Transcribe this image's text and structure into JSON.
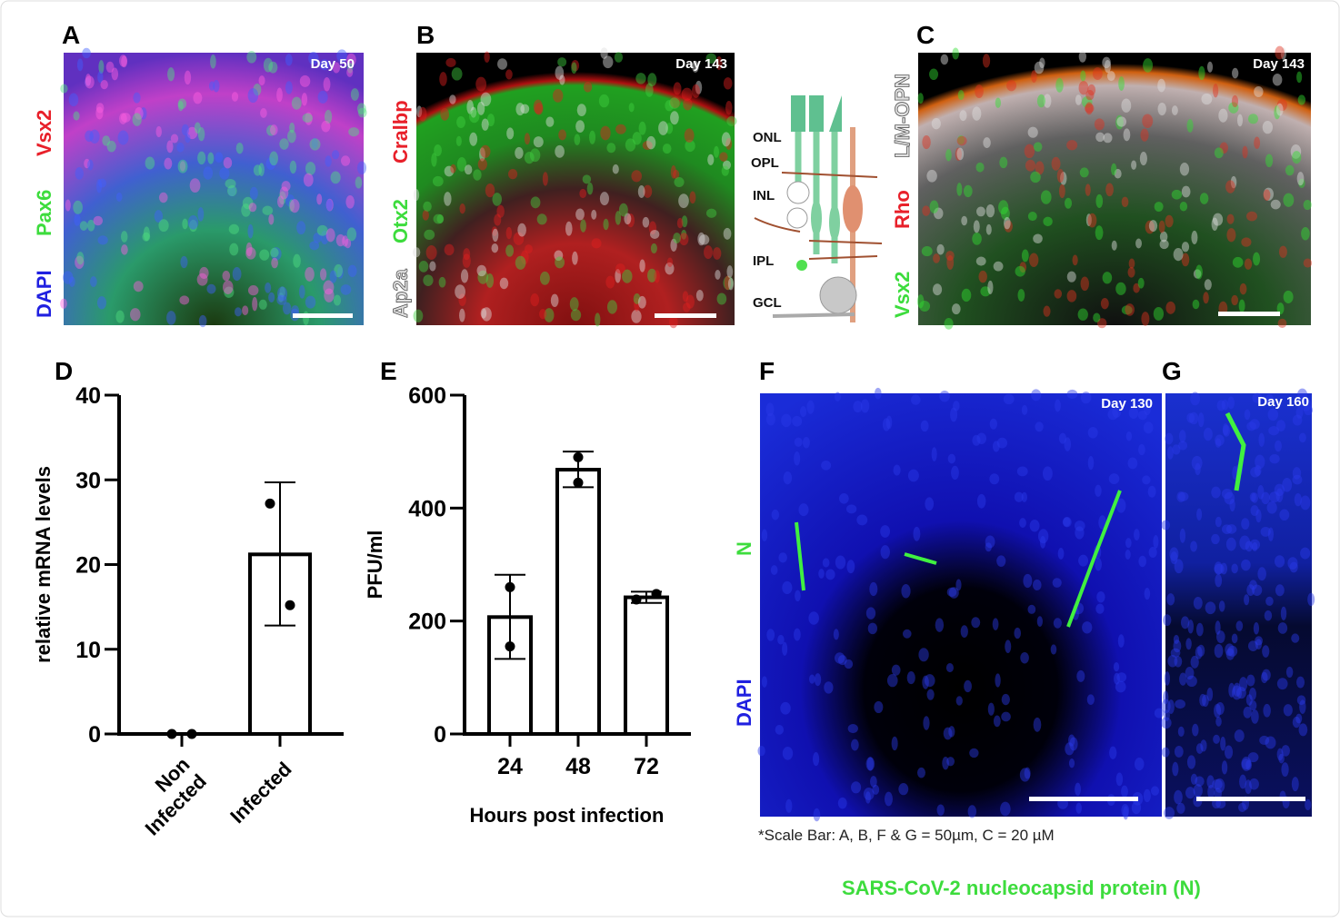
{
  "panels": {
    "A": {
      "letter": "A",
      "day": "Day 50",
      "channels": [
        {
          "label": "Vsx2",
          "color": "#e8202a"
        },
        {
          "label": "Pax6",
          "color": "#3ddc3d"
        },
        {
          "label": "DAPI",
          "color": "#2020e0"
        }
      ]
    },
    "B": {
      "letter": "B",
      "day": "Day 143",
      "channels": [
        {
          "label": "Cralbp",
          "color": "#e8202a"
        },
        {
          "label": "Otx2",
          "color": "#3ddc3d"
        },
        {
          "label": "Ap2a",
          "color": "#d0d0d0"
        }
      ],
      "layers": [
        "ONL",
        "OPL",
        "INL",
        "IPL",
        "GCL"
      ]
    },
    "C": {
      "letter": "C",
      "day": "Day 143",
      "channels": [
        {
          "label": "L/M-OPN",
          "color": "#d0d0d0"
        },
        {
          "label": "Rho",
          "color": "#e8202a"
        },
        {
          "label": "Vsx2",
          "color": "#3ddc3d"
        }
      ]
    },
    "D": {
      "letter": "D"
    },
    "E": {
      "letter": "E"
    },
    "F": {
      "letter": "F",
      "day": "Day 130",
      "channels": [
        {
          "label": "N",
          "color": "#3ddc3d"
        },
        {
          "label": "DAPI",
          "color": "#2020e0"
        }
      ]
    },
    "G": {
      "letter": "G",
      "day": "Day 160"
    }
  },
  "scale_note": "*Scale Bar: A, B, F & G =  50µm, C = 20 µM",
  "footer_label": "SARS-CoV-2 nucleocapsid protein (N)",
  "footer_color": "#3ddc3d",
  "chart_data": [
    {
      "panel": "D",
      "type": "bar",
      "categories": [
        "Non Infected",
        "Infected"
      ],
      "values": [
        0,
        21.2
      ],
      "points": [
        [
          0,
          0
        ],
        [
          27.2,
          15.2
        ]
      ],
      "error": [
        [
          0,
          0
        ],
        [
          12.8,
          29.7
        ]
      ],
      "xlabel": "",
      "ylabel": "relative mRNA levels",
      "ylim": [
        0,
        40
      ],
      "yticks": [
        0,
        10,
        20,
        30,
        40
      ],
      "grid": false
    },
    {
      "panel": "E",
      "type": "bar",
      "categories": [
        "24",
        "48",
        "72"
      ],
      "values": [
        207,
        468,
        242
      ],
      "points": [
        [
          260,
          155
        ],
        [
          490,
          445
        ],
        [
          238,
          248
        ]
      ],
      "error": [
        [
          133,
          282
        ],
        [
          437,
          500
        ],
        [
          232,
          252
        ]
      ],
      "xlabel": "Hours post infection",
      "ylabel": "PFU/ml",
      "ylim": [
        0,
        600
      ],
      "yticks": [
        0,
        200,
        400,
        600
      ],
      "grid": false
    }
  ]
}
